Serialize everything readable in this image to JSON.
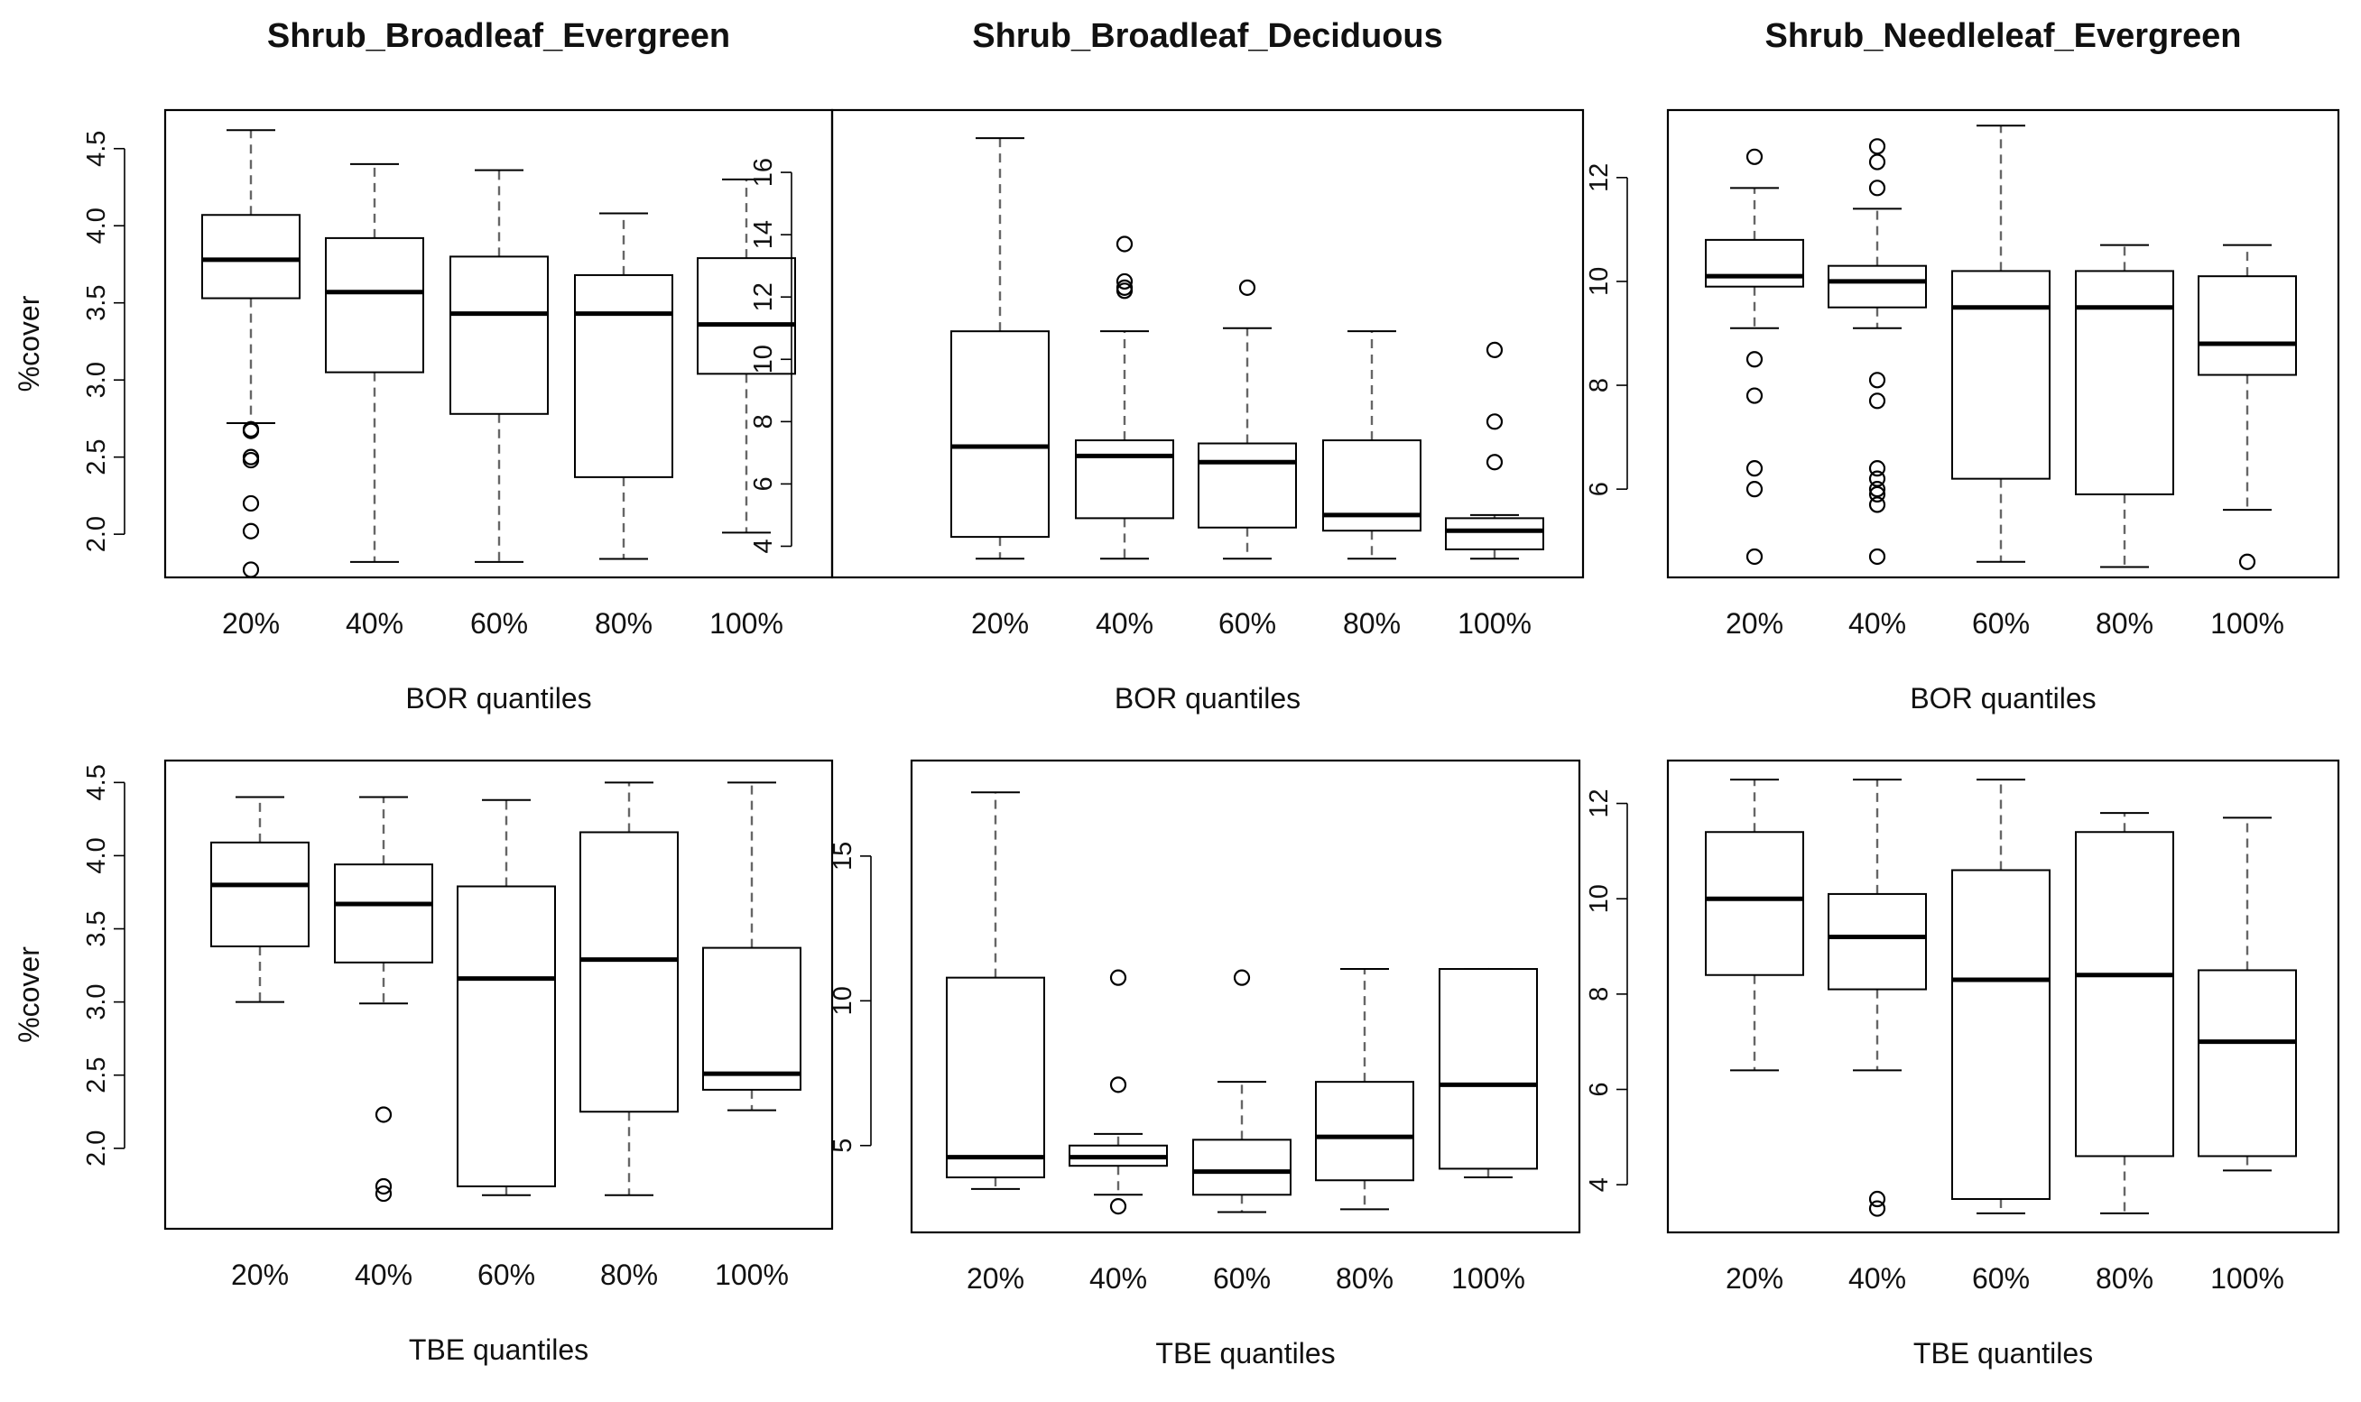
{
  "colors": {
    "box_fill": "#ffffff",
    "stroke": "#000000",
    "whisker": "#666666"
  },
  "chart_data": [
    {
      "type": "boxplot",
      "title": "Shrub_Broadleaf_Evergreen",
      "xlabel": "BOR quantiles",
      "ylabel": "%cover",
      "categories": [
        "20%",
        "40%",
        "60%",
        "80%",
        "100%"
      ],
      "ylim": [
        1.72,
        4.75
      ],
      "yticks": [
        "2.0",
        "2.5",
        "3.0",
        "3.5",
        "4.0",
        "4.5"
      ],
      "boxes": [
        {
          "lw": 2.72,
          "q1": 3.53,
          "med": 3.78,
          "q3": 4.07,
          "uw": 4.62,
          "out": [
            2.68,
            2.67,
            2.5,
            2.48,
            2.2,
            2.02,
            1.77
          ]
        },
        {
          "lw": 1.82,
          "q1": 3.05,
          "med": 3.57,
          "q3": 3.92,
          "uw": 4.4,
          "out": []
        },
        {
          "lw": 1.82,
          "q1": 2.78,
          "med": 3.43,
          "q3": 3.8,
          "uw": 4.36,
          "out": []
        },
        {
          "lw": 1.84,
          "q1": 2.37,
          "med": 3.43,
          "q3": 3.68,
          "uw": 4.08,
          "out": []
        },
        {
          "lw": 2.01,
          "q1": 3.04,
          "med": 3.36,
          "q3": 3.79,
          "uw": 4.3,
          "out": []
        }
      ]
    },
    {
      "type": "boxplot",
      "title": "Shrub_Broadleaf_Deciduous",
      "xlabel": "BOR quantiles",
      "ylabel": "",
      "categories": [
        "20%",
        "40%",
        "60%",
        "80%",
        "100%"
      ],
      "ylim": [
        3.0,
        18.0
      ],
      "yticks": [
        "4",
        "6",
        "8",
        "10",
        "12",
        "14",
        "16"
      ],
      "boxes": [
        {
          "lw": 3.6,
          "q1": 4.3,
          "med": 7.2,
          "q3": 10.9,
          "uw": 17.1,
          "out": []
        },
        {
          "lw": 3.6,
          "q1": 4.9,
          "med": 6.9,
          "q3": 7.4,
          "uw": 10.9,
          "out": [
            13.7,
            12.5,
            12.3,
            12.2
          ]
        },
        {
          "lw": 3.6,
          "q1": 4.6,
          "med": 6.7,
          "q3": 7.3,
          "uw": 11.0,
          "out": [
            12.3
          ]
        },
        {
          "lw": 3.6,
          "q1": 4.5,
          "med": 5.0,
          "q3": 7.4,
          "uw": 10.9,
          "out": []
        },
        {
          "lw": 3.6,
          "q1": 3.9,
          "med": 4.5,
          "q3": 4.9,
          "uw": 5.0,
          "out": [
            10.3,
            8.0,
            6.7
          ]
        }
      ]
    },
    {
      "type": "boxplot",
      "title": "Shrub_Needleleaf_Evergreen",
      "xlabel": "BOR quantiles",
      "ylabel": "",
      "categories": [
        "20%",
        "40%",
        "60%",
        "80%",
        "100%"
      ],
      "ylim": [
        4.3,
        13.3
      ],
      "yticks": [
        "6",
        "8",
        "10",
        "12"
      ],
      "boxes": [
        {
          "lw": 9.1,
          "q1": 9.9,
          "med": 10.1,
          "q3": 10.8,
          "uw": 11.8,
          "out": [
            12.4,
            8.5,
            7.8,
            6.4,
            6.0,
            4.7
          ]
        },
        {
          "lw": 9.1,
          "q1": 9.5,
          "med": 10.0,
          "q3": 10.3,
          "uw": 11.4,
          "out": [
            12.6,
            12.3,
            11.8,
            8.1,
            7.7,
            6.4,
            6.2,
            6.0,
            5.9,
            5.7,
            4.7
          ]
        },
        {
          "lw": 4.6,
          "q1": 6.2,
          "med": 9.5,
          "q3": 10.2,
          "uw": 13.0,
          "out": []
        },
        {
          "lw": 4.5,
          "q1": 5.9,
          "med": 9.5,
          "q3": 10.2,
          "uw": 10.7,
          "out": []
        },
        {
          "lw": 5.6,
          "q1": 8.2,
          "med": 8.8,
          "q3": 10.1,
          "uw": 10.7,
          "out": [
            4.6
          ]
        }
      ]
    },
    {
      "type": "boxplot",
      "title": "",
      "xlabel": "TBE quantiles",
      "ylabel": "%cover",
      "categories": [
        "20%",
        "40%",
        "60%",
        "80%",
        "100%"
      ],
      "ylim": [
        1.45,
        4.65
      ],
      "yticks": [
        "2.0",
        "2.5",
        "3.0",
        "3.5",
        "4.0",
        "4.5"
      ],
      "boxes": [
        {
          "lw": 3.0,
          "q1": 3.38,
          "med": 3.8,
          "q3": 4.09,
          "uw": 4.4,
          "out": []
        },
        {
          "lw": 2.99,
          "q1": 3.27,
          "med": 3.67,
          "q3": 3.94,
          "uw": 4.4,
          "out": [
            2.23,
            1.74,
            1.69
          ]
        },
        {
          "lw": 1.68,
          "q1": 1.74,
          "med": 3.16,
          "q3": 3.79,
          "uw": 4.38,
          "out": []
        },
        {
          "lw": 1.68,
          "q1": 2.25,
          "med": 3.29,
          "q3": 4.16,
          "uw": 4.5,
          "out": []
        },
        {
          "lw": 2.26,
          "q1": 2.4,
          "med": 2.51,
          "q3": 3.37,
          "uw": 4.5,
          "out": []
        }
      ]
    },
    {
      "type": "boxplot",
      "title": "",
      "xlabel": "TBE quantiles",
      "ylabel": "",
      "categories": [
        "20%",
        "40%",
        "60%",
        "80%",
        "100%"
      ],
      "ylim": [
        2.0,
        18.3
      ],
      "yticks": [
        "5",
        "10",
        "15"
      ],
      "boxes": [
        {
          "lw": 3.5,
          "q1": 3.9,
          "med": 4.6,
          "q3": 10.8,
          "uw": 17.2,
          "out": []
        },
        {
          "lw": 3.3,
          "q1": 4.3,
          "med": 4.6,
          "q3": 5.0,
          "uw": 5.4,
          "out": [
            10.8,
            7.1,
            2.9
          ]
        },
        {
          "lw": 2.7,
          "q1": 3.3,
          "med": 4.1,
          "q3": 5.2,
          "uw": 7.2,
          "out": [
            10.8
          ]
        },
        {
          "lw": 2.8,
          "q1": 3.8,
          "med": 5.3,
          "q3": 7.2,
          "uw": 11.1,
          "out": []
        },
        {
          "lw": 3.9,
          "q1": 4.2,
          "med": 7.1,
          "q3": 11.1,
          "uw": 11.1,
          "out": []
        }
      ]
    },
    {
      "type": "boxplot",
      "title": "",
      "xlabel": "TBE quantiles",
      "ylabel": "",
      "categories": [
        "20%",
        "40%",
        "60%",
        "80%",
        "100%"
      ],
      "ylim": [
        3.0,
        12.9
      ],
      "yticks": [
        "4",
        "6",
        "8",
        "10",
        "12"
      ],
      "boxes": [
        {
          "lw": 6.4,
          "q1": 8.4,
          "med": 10.0,
          "q3": 11.4,
          "uw": 12.5,
          "out": []
        },
        {
          "lw": 6.4,
          "q1": 8.1,
          "med": 9.2,
          "q3": 10.1,
          "uw": 12.5,
          "out": [
            3.7,
            3.5
          ]
        },
        {
          "lw": 3.4,
          "q1": 3.7,
          "med": 8.3,
          "q3": 10.6,
          "uw": 12.5,
          "out": []
        },
        {
          "lw": 3.4,
          "q1": 4.6,
          "med": 8.4,
          "q3": 11.4,
          "uw": 11.8,
          "out": []
        },
        {
          "lw": 4.3,
          "q1": 4.6,
          "med": 7.0,
          "q3": 8.5,
          "uw": 11.7,
          "out": []
        }
      ]
    }
  ]
}
